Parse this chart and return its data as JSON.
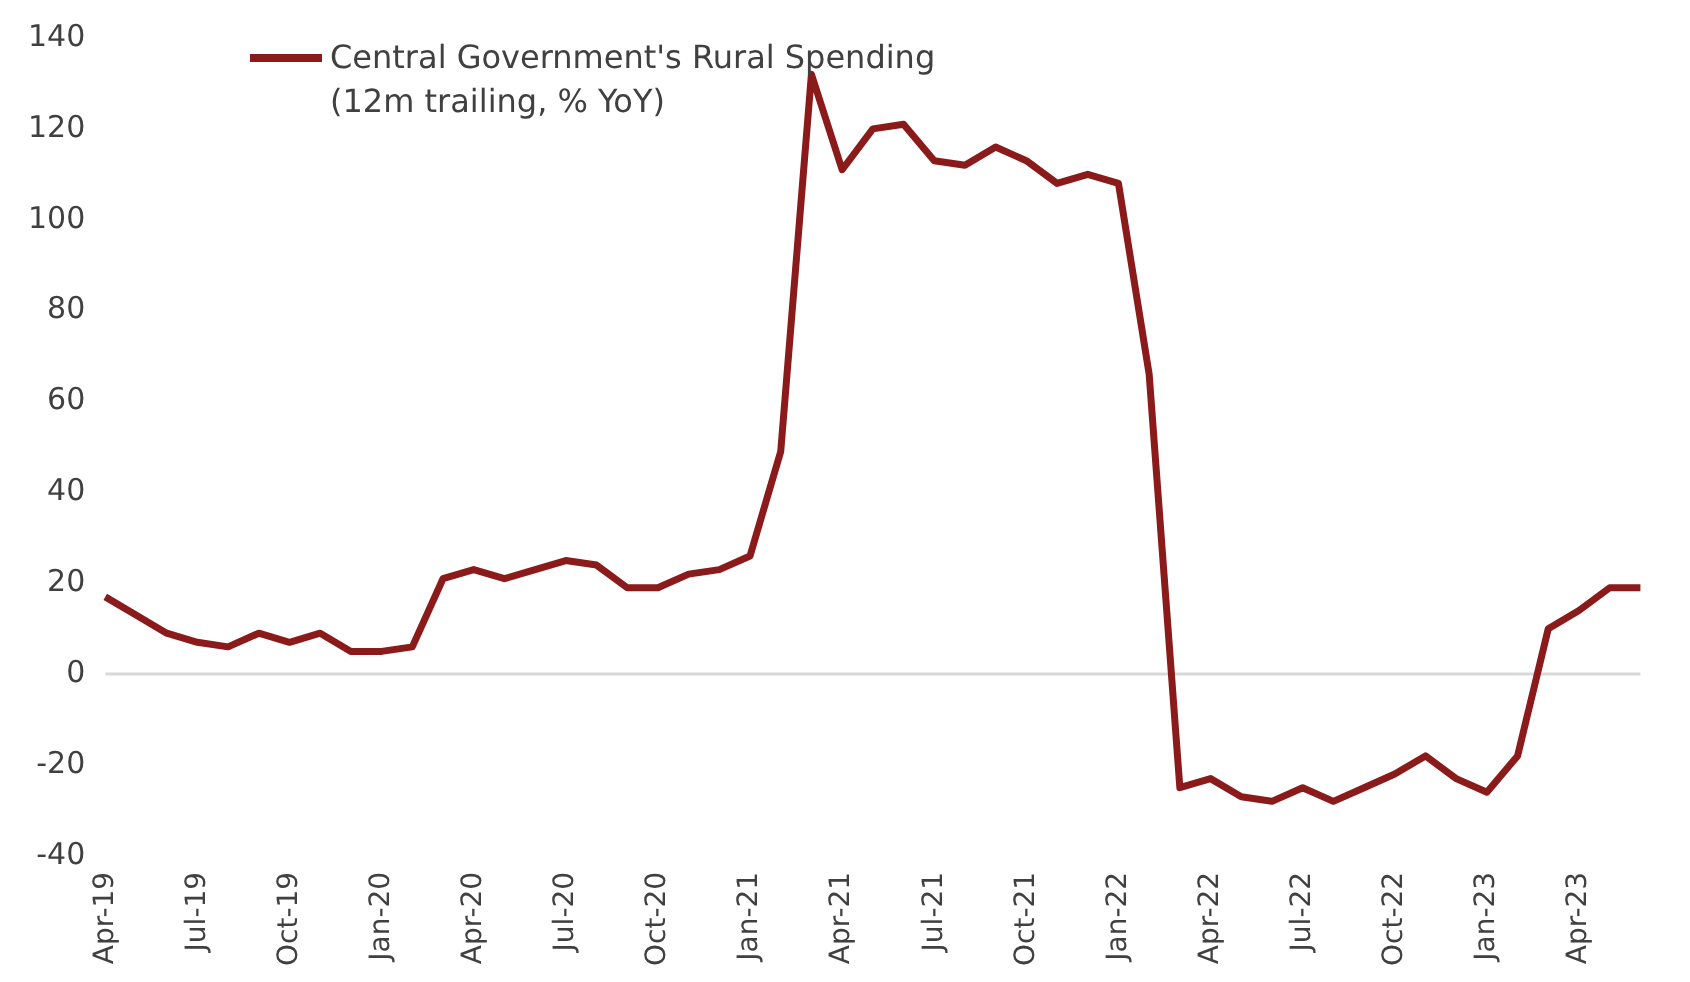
{
  "chart_data": {
    "type": "line",
    "categories": [
      "Apr-19",
      null,
      null,
      "Jul-19",
      null,
      null,
      "Oct-19",
      null,
      null,
      "Jan-20",
      null,
      null,
      "Apr-20",
      null,
      null,
      "Jul-20",
      null,
      null,
      "Oct-20",
      null,
      null,
      "Jan-21",
      null,
      null,
      "Apr-21",
      null,
      null,
      "Jul-21",
      null,
      null,
      "Oct-21",
      null,
      null,
      "Jan-22",
      null,
      null,
      "Apr-22",
      null,
      null,
      "Jul-22",
      null,
      null,
      "Oct-22",
      null,
      null,
      "Jan-23",
      null,
      null,
      "Apr-23",
      null,
      null
    ],
    "series": [
      {
        "name": "Central Government's Rural Spending (12m trailing, % YoY)",
        "color": "#8b1a1a",
        "values": [
          17,
          13,
          9,
          7,
          6,
          9,
          7,
          9,
          5,
          5,
          6,
          21,
          23,
          21,
          23,
          25,
          24,
          19,
          19,
          22,
          23,
          26,
          49,
          132,
          111,
          120,
          121,
          113,
          112,
          116,
          113,
          108,
          110,
          108,
          66,
          -25,
          -23,
          -27,
          -28,
          -25,
          -28,
          -25,
          -22,
          -18,
          -23,
          -26,
          -18,
          10,
          14,
          19,
          19
        ]
      }
    ],
    "ylim": [
      -40,
      140
    ],
    "yticks": [
      -40,
      -20,
      0,
      20,
      40,
      60,
      80,
      100,
      120,
      140
    ],
    "grid": false,
    "legend": "top left",
    "marker": "none",
    "line_style": "solid",
    "ref_lines": [
      {
        "axis": "y",
        "value": 0,
        "color": "#d9d9d9"
      }
    ]
  }
}
